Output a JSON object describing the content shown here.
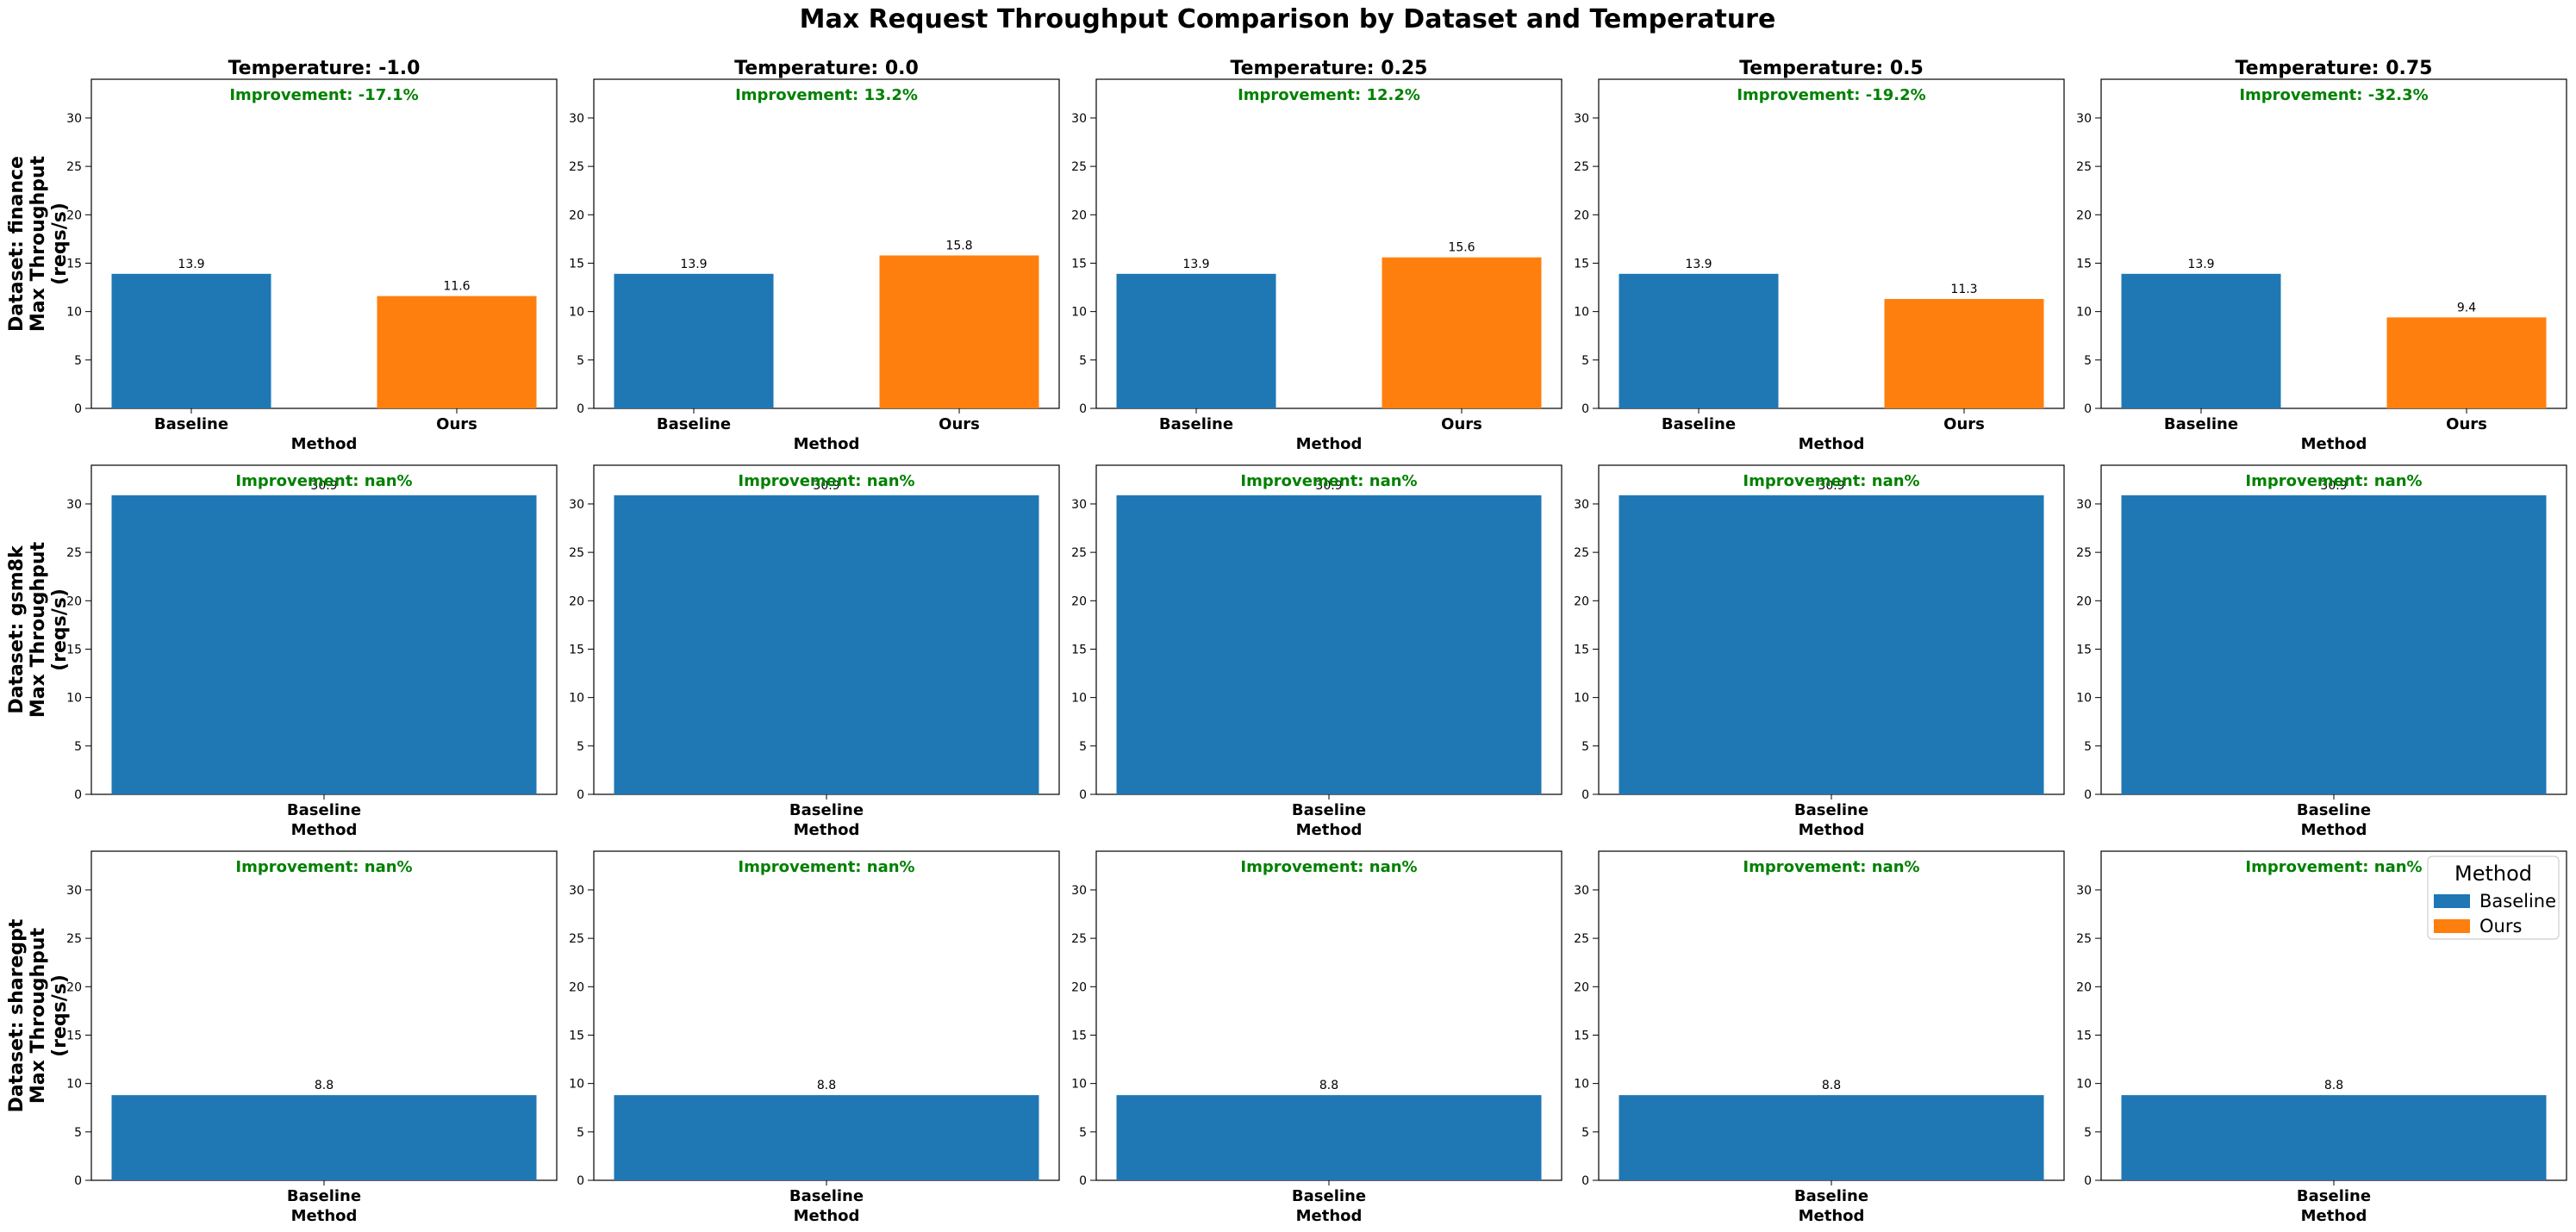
{
  "title": "Max Request Throughput Comparison by Dataset and Temperature",
  "colors": {
    "Baseline": "#1f77b4",
    "Ours": "#ff7f0e",
    "improvement": "#008000"
  },
  "legend": {
    "title": "Method",
    "placement": "top-right of last panel",
    "entries": [
      "Baseline",
      "Ours"
    ]
  },
  "chart_data": {
    "type": "bar",
    "ylim": [
      0,
      34
    ],
    "yticks": [
      0,
      5,
      10,
      15,
      20,
      25,
      30
    ],
    "xlabel": "Method",
    "ylabel": "Max Throughput\n(reqs/s)",
    "columns": [
      "Temperature: -1.0",
      "Temperature: 0.0",
      "Temperature: 0.25",
      "Temperature: 0.5",
      "Temperature: 0.75"
    ],
    "rows": [
      {
        "label": "Dataset: finance",
        "panels": [
          {
            "categories": [
              "Baseline",
              "Ours"
            ],
            "values": [
              13.9,
              11.6
            ],
            "labels": [
              "13.9",
              "11.6"
            ],
            "improvement": "Improvement: -17.1%"
          },
          {
            "categories": [
              "Baseline",
              "Ours"
            ],
            "values": [
              13.9,
              15.8
            ],
            "labels": [
              "13.9",
              "15.8"
            ],
            "improvement": "Improvement: 13.2%"
          },
          {
            "categories": [
              "Baseline",
              "Ours"
            ],
            "values": [
              13.9,
              15.6
            ],
            "labels": [
              "13.9",
              "15.6"
            ],
            "improvement": "Improvement: 12.2%"
          },
          {
            "categories": [
              "Baseline",
              "Ours"
            ],
            "values": [
              13.9,
              11.3
            ],
            "labels": [
              "13.9",
              "11.3"
            ],
            "improvement": "Improvement: -19.2%"
          },
          {
            "categories": [
              "Baseline",
              "Ours"
            ],
            "values": [
              13.9,
              9.4
            ],
            "labels": [
              "13.9",
              "9.4"
            ],
            "improvement": "Improvement: -32.3%"
          }
        ]
      },
      {
        "label": "Dataset: gsm8k",
        "panels": [
          {
            "categories": [
              "Baseline"
            ],
            "values": [
              30.9
            ],
            "labels": [
              "30.9"
            ],
            "improvement": "Improvement: nan%"
          },
          {
            "categories": [
              "Baseline"
            ],
            "values": [
              30.9
            ],
            "labels": [
              "30.9"
            ],
            "improvement": "Improvement: nan%"
          },
          {
            "categories": [
              "Baseline"
            ],
            "values": [
              30.9
            ],
            "labels": [
              "30.9"
            ],
            "improvement": "Improvement: nan%"
          },
          {
            "categories": [
              "Baseline"
            ],
            "values": [
              30.9
            ],
            "labels": [
              "30.9"
            ],
            "improvement": "Improvement: nan%"
          },
          {
            "categories": [
              "Baseline"
            ],
            "values": [
              30.9
            ],
            "labels": [
              "30.9"
            ],
            "improvement": "Improvement: nan%"
          }
        ]
      },
      {
        "label": "Dataset: sharegpt",
        "panels": [
          {
            "categories": [
              "Baseline"
            ],
            "values": [
              8.8
            ],
            "labels": [
              "8.8"
            ],
            "improvement": "Improvement: nan%"
          },
          {
            "categories": [
              "Baseline"
            ],
            "values": [
              8.8
            ],
            "labels": [
              "8.8"
            ],
            "improvement": "Improvement: nan%"
          },
          {
            "categories": [
              "Baseline"
            ],
            "values": [
              8.8
            ],
            "labels": [
              "8.8"
            ],
            "improvement": "Improvement: nan%"
          },
          {
            "categories": [
              "Baseline"
            ],
            "values": [
              8.8
            ],
            "labels": [
              "8.8"
            ],
            "improvement": "Improvement: nan%"
          },
          {
            "categories": [
              "Baseline"
            ],
            "values": [
              8.8
            ],
            "labels": [
              "8.8"
            ],
            "improvement": "Improvement: nan%"
          }
        ]
      }
    ]
  }
}
